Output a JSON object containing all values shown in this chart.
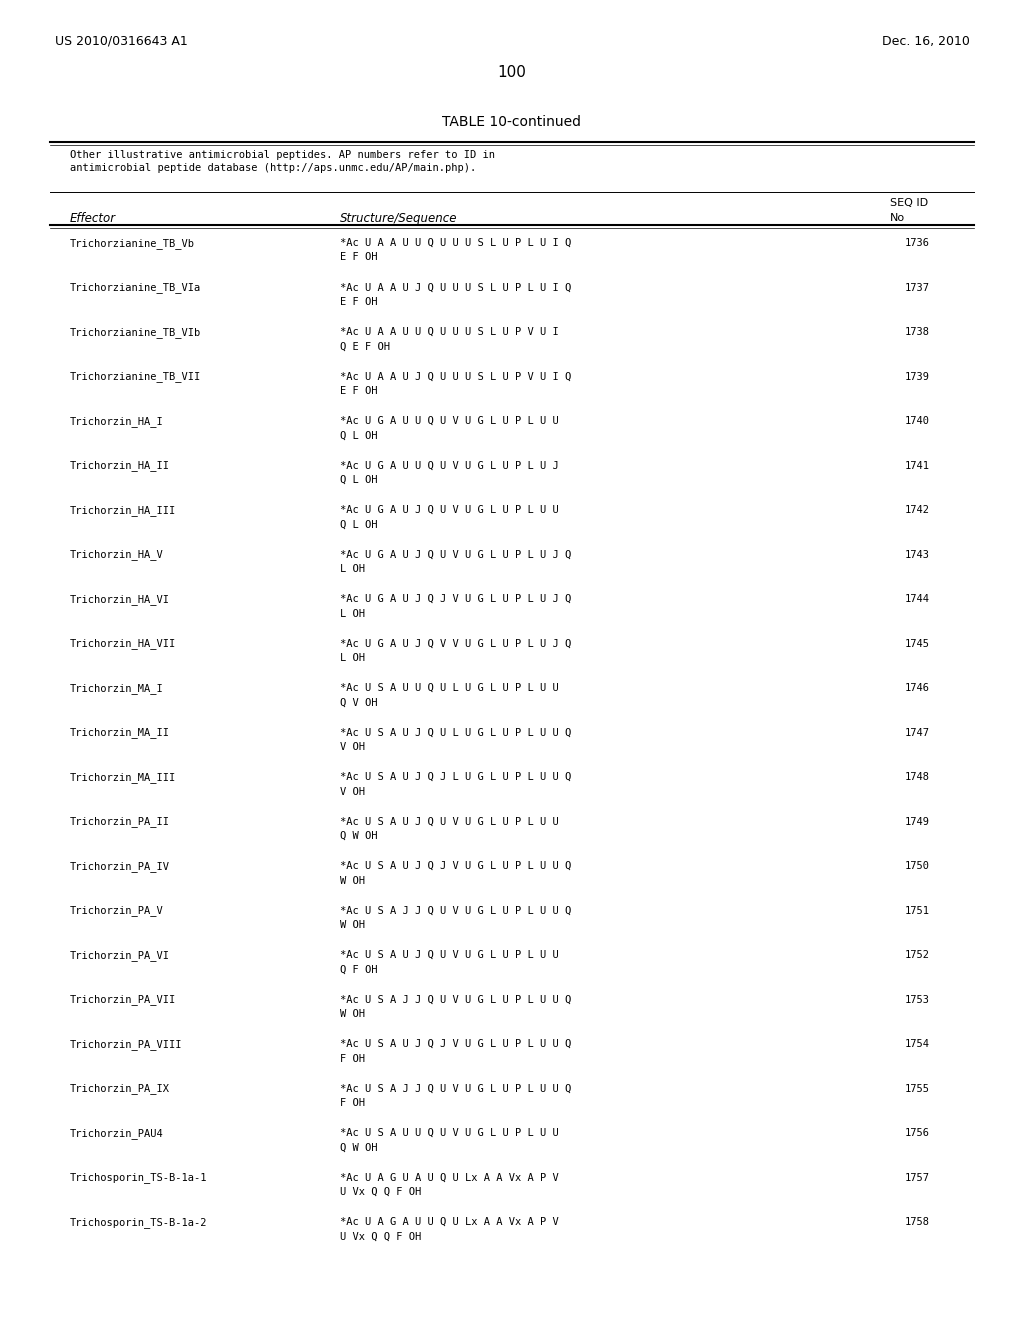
{
  "page_number": "100",
  "patent_number": "US 2010/0316643 A1",
  "patent_date": "Dec. 16, 2010",
  "table_title": "TABLE 10-continued",
  "table_subtitle": "Other illustrative antimicrobial peptides. AP numbers refer to ID in\nantimicrobial peptide database (http://aps.unmc.edu/AP/main.php).",
  "col_headers": [
    "Effector",
    "Structure/Sequence",
    "SEQ ID\nNo"
  ],
  "rows": [
    [
      "Trichorzianine_TB_Vb",
      "*Ac U A A U U Q U U U S L U P L U I Q\nE F OH",
      "1736"
    ],
    [
      "Trichorzianine_TB_VIa",
      "*Ac U A A U J Q U U U S L U P L U I Q\nE F OH",
      "1737"
    ],
    [
      "Trichorzianine_TB_VIb",
      "*Ac U A A U U Q U U U S L U P V U I\nQ E F OH",
      "1738"
    ],
    [
      "Trichorzianine_TB_VII",
      "*Ac U A A U J Q U U U S L U P V U I Q\nE F OH",
      "1739"
    ],
    [
      "Trichorzin_HA_I",
      "*Ac U G A U U Q U V U G L U P L U U\nQ L OH",
      "1740"
    ],
    [
      "Trichorzin_HA_II",
      "*Ac U G A U U Q U V U G L U P L U J\nQ L OH",
      "1741"
    ],
    [
      "Trichorzin_HA_III",
      "*Ac U G A U J Q U V U G L U P L U U\nQ L OH",
      "1742"
    ],
    [
      "Trichorzin_HA_V",
      "*Ac U G A U J Q U V U G L U P L U J Q\nL OH",
      "1743"
    ],
    [
      "Trichorzin_HA_VI",
      "*Ac U G A U J Q J V U G L U P L U J Q\nL OH",
      "1744"
    ],
    [
      "Trichorzin_HA_VII",
      "*Ac U G A U J Q V V U G L U P L U J Q\nL OH",
      "1745"
    ],
    [
      "Trichorzin_MA_I",
      "*Ac U S A U U Q U L U G L U P L U U\nQ V OH",
      "1746"
    ],
    [
      "Trichorzin_MA_II",
      "*Ac U S A U J Q U L U G L U P L U U Q\nV OH",
      "1747"
    ],
    [
      "Trichorzin_MA_III",
      "*Ac U S A U J Q J L U G L U P L U U Q\nV OH",
      "1748"
    ],
    [
      "Trichorzin_PA_II",
      "*Ac U S A U J Q U V U G L U P L U U\nQ W OH",
      "1749"
    ],
    [
      "Trichorzin_PA_IV",
      "*Ac U S A U J Q J V U G L U P L U U Q\nW OH",
      "1750"
    ],
    [
      "Trichorzin_PA_V",
      "*Ac U S A J J Q U V U G L U P L U U Q\nW OH",
      "1751"
    ],
    [
      "Trichorzin_PA_VI",
      "*Ac U S A U J Q U V U G L U P L U U\nQ F OH",
      "1752"
    ],
    [
      "Trichorzin_PA_VII",
      "*Ac U S A J J Q U V U G L U P L U U Q\nW OH",
      "1753"
    ],
    [
      "Trichorzin_PA_VIII",
      "*Ac U S A U J Q J V U G L U P L U U Q\nF OH",
      "1754"
    ],
    [
      "Trichorzin_PA_IX",
      "*Ac U S A J J Q U V U G L U P L U U Q\nF OH",
      "1755"
    ],
    [
      "Trichorzin_PAU4",
      "*Ac U S A U U Q U V U G L U P L U U\nQ W OH",
      "1756"
    ],
    [
      "Trichosporin_TS-B-1a-1",
      "*Ac U A G U A U Q U Lx A A Vx A P V\nU Vx Q Q F OH",
      "1757"
    ],
    [
      "Trichosporin_TS-B-1a-2",
      "*Ac U A G A U U Q U Lx A A Vx A P V\nU Vx Q Q F OH",
      "1758"
    ]
  ],
  "bg_color": "#ffffff",
  "text_color": "#000000",
  "mono_font": "DejaVu Sans Mono",
  "regular_font": "DejaVu Sans"
}
